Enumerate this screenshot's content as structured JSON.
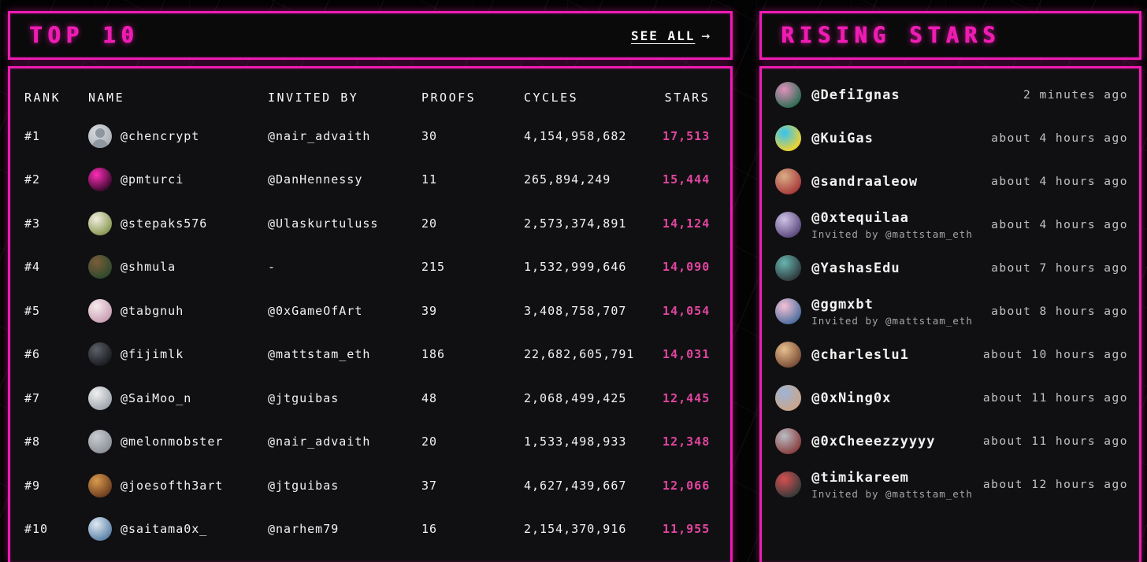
{
  "theme": {
    "accent": "#ee1cb2",
    "star_color": "#e1459f",
    "page_bg": "#030303",
    "panel_bg": "#101012",
    "text": "#f2f2f2",
    "muted": "#a6a6a6"
  },
  "top10": {
    "title": "TOP 10",
    "see_all_label": "SEE ALL",
    "see_all_arrow": "→",
    "columns": [
      "RANK",
      "NAME",
      "INVITED BY",
      "PROOFS",
      "CYCLES",
      "STARS"
    ],
    "rows": [
      {
        "rank": "#1",
        "name": "@chencrypt",
        "invited_by": "@nair_advaith",
        "proofs": "30",
        "cycles": "4,154,958,682",
        "stars": "17,513",
        "avatar": {
          "label": "default-person-avatar",
          "c1": "#d7dbdf",
          "c2": "#aab1b8"
        }
      },
      {
        "rank": "#2",
        "name": "@pmturci",
        "invited_by": "@DanHennessy",
        "proofs": "11",
        "cycles": "265,894,249",
        "stars": "15,444",
        "avatar": {
          "label": "succinct-logo-avatar",
          "c1": "#ff2db8",
          "c2": "#3c0a2e"
        }
      },
      {
        "rank": "#3",
        "name": "@stepaks576",
        "invited_by": "@Ulaskurtuluss",
        "proofs": "20",
        "cycles": "2,573,374,891",
        "stars": "14,124",
        "avatar": {
          "label": "duck-avatar",
          "c1": "#f2eee0",
          "c2": "#8a9a55"
        }
      },
      {
        "rank": "#4",
        "name": "@shmula",
        "invited_by": "-",
        "proofs": "215",
        "cycles": "1,532,999,646",
        "stars": "14,090",
        "avatar": {
          "label": "bear-avatar",
          "c1": "#7a5c3a",
          "c2": "#2f4a2d"
        }
      },
      {
        "rank": "#5",
        "name": "@tabgnuh",
        "invited_by": "@0xGameOfArt",
        "proofs": "39",
        "cycles": "3,408,758,707",
        "stars": "14,054",
        "avatar": {
          "label": "kitty-avatar",
          "c1": "#f6ecec",
          "c2": "#caa0b4"
        }
      },
      {
        "rank": "#6",
        "name": "@fijimlk",
        "invited_by": "@mattstam_eth",
        "proofs": "186",
        "cycles": "22,682,605,791",
        "stars": "14,031",
        "avatar": {
          "label": "dark-figure-avatar",
          "c1": "#5c6068",
          "c2": "#1a1c20"
        }
      },
      {
        "rank": "#7",
        "name": "@SaiMoo_n",
        "invited_by": "@jtguibas",
        "proofs": "48",
        "cycles": "2,068,499,425",
        "stars": "12,445",
        "avatar": {
          "label": "white-cat-avatar",
          "c1": "#f0f0f0",
          "c2": "#9fa6ad"
        }
      },
      {
        "rank": "#8",
        "name": "@melonmobster",
        "invited_by": "@nair_advaith",
        "proofs": "20",
        "cycles": "1,533,498,933",
        "stars": "12,348",
        "avatar": {
          "label": "seal-avatar",
          "c1": "#c9ccd1",
          "c2": "#8d9298"
        }
      },
      {
        "rank": "#9",
        "name": "@joesofth3art",
        "invited_by": "@jtguibas",
        "proofs": "37",
        "cycles": "4,627,439,667",
        "stars": "12,066",
        "avatar": {
          "label": "cartoon-avatar",
          "c1": "#d99a4e",
          "c2": "#6e3f1f"
        }
      },
      {
        "rank": "#10",
        "name": "@saitama0x_",
        "invited_by": "@narhem79",
        "proofs": "16",
        "cycles": "2,154,370,916",
        "stars": "11,955",
        "avatar": {
          "label": "anime-avatar",
          "c1": "#dfe9f2",
          "c2": "#5d83a8"
        }
      }
    ]
  },
  "rising": {
    "title": "RISING STARS",
    "entries": [
      {
        "name": "@DefiIgnas",
        "time": "2 minutes ago",
        "invited_by": "",
        "avatar": {
          "label": "penguin-avatar",
          "c1": "#e290bd",
          "c2": "#2f6e54"
        }
      },
      {
        "name": "@KuiGas",
        "time": "about 4 hours ago",
        "invited_by": "",
        "avatar": {
          "label": "pixel-art-avatar",
          "c1": "#35c3f5",
          "c2": "#f0d22f"
        }
      },
      {
        "name": "@sandraaleow",
        "time": "about 4 hours ago",
        "invited_by": "",
        "avatar": {
          "label": "photo-avatar",
          "c1": "#d9ad85",
          "c2": "#a83c3c"
        }
      },
      {
        "name": "@0xtequilaa",
        "time": "about 4 hours ago",
        "invited_by": "Invited by @mattstam_eth",
        "avatar": {
          "label": "purple-toy-avatar",
          "c1": "#cfc3e6",
          "c2": "#5c4a7e"
        }
      },
      {
        "name": "@YashasEdu",
        "time": "about 7 hours ago",
        "invited_by": "",
        "avatar": {
          "label": "teal-avatar",
          "c1": "#67b6b0",
          "c2": "#303a3e"
        }
      },
      {
        "name": "@ggmxbt",
        "time": "about 8 hours ago",
        "invited_by": "Invited by @mattstam_eth",
        "avatar": {
          "label": "anime-girl-avatar",
          "c1": "#f6c2d6",
          "c2": "#4e6f9e"
        }
      },
      {
        "name": "@charleslu1",
        "time": "about 10 hours ago",
        "invited_by": "",
        "avatar": {
          "label": "cartoon-face-avatar",
          "c1": "#e8c08e",
          "c2": "#7a4e38"
        }
      },
      {
        "name": "@0xNing0x",
        "time": "about 11 hours ago",
        "invited_by": "",
        "avatar": {
          "label": "portrait-avatar",
          "c1": "#9db4d6",
          "c2": "#caa58a"
        }
      },
      {
        "name": "@0xCheeezzyyyy",
        "time": "about 11 hours ago",
        "invited_by": "",
        "avatar": {
          "label": "gray-figure-avatar",
          "c1": "#b9bec4",
          "c2": "#8a4040"
        }
      },
      {
        "name": "@timikareem",
        "time": "about 12 hours ago",
        "invited_by": "Invited by @mattstam_eth",
        "avatar": {
          "label": "red-cap-avatar",
          "c1": "#d55050",
          "c2": "#3a3a3a"
        }
      }
    ]
  }
}
